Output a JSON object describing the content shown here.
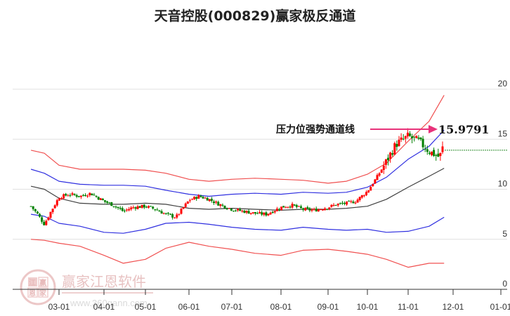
{
  "title": "天音控股(000829)赢家极反通道",
  "annotation": {
    "label": "压力位强势通道线",
    "value": "15.9791",
    "arrow_color": "#e8327a"
  },
  "watermark": {
    "brand": "赢家江恩软件",
    "url": "www.360gann.com",
    "seal": [
      "江",
      "赢",
      "恩",
      "家"
    ]
  },
  "colors": {
    "up": "#ff0000",
    "down": "#008000",
    "outer_band": "#f05050",
    "inner_band": "#3030e0",
    "mid_line": "#404040",
    "grid": "#e0e0e0",
    "axis": "#333333",
    "projection": "#2a8a2a"
  },
  "chart_data": {
    "type": "candlestick",
    "title": "天音控股(000829)赢家极反通道",
    "xlabel": "",
    "ylabel": "",
    "ylim": [
      0,
      20
    ],
    "y_ticks": [
      0,
      5,
      10,
      15,
      20
    ],
    "x_ticks": [
      "03-01",
      "04-01",
      "05-01",
      "06-01",
      "07-01",
      "08-01",
      "09-01",
      "10-01",
      "11-01",
      "12-01",
      "01-01"
    ],
    "grid": true,
    "legend": null,
    "annotations": [
      {
        "text": "压力位强势通道线",
        "value": 15.9791,
        "type": "arrow"
      }
    ],
    "projection_level": 13.9,
    "series": [
      {
        "name": "outer_upper_band",
        "x": [
          "02-10",
          "02-20",
          "03-01",
          "03-15",
          "04-01",
          "04-15",
          "05-01",
          "05-15",
          "06-01",
          "06-15",
          "07-01",
          "07-15",
          "08-01",
          "08-15",
          "09-01",
          "09-15",
          "10-01",
          "10-15",
          "11-01",
          "11-15",
          "11-25"
        ],
        "values": [
          13.9,
          13.6,
          12.4,
          12.0,
          12.0,
          12.0,
          11.9,
          11.6,
          11.0,
          10.8,
          11.0,
          11.1,
          11.0,
          10.9,
          10.6,
          10.8,
          11.5,
          12.6,
          14.8,
          16.8,
          19.4
        ]
      },
      {
        "name": "inner_upper_band",
        "x": [
          "02-10",
          "02-20",
          "03-01",
          "03-15",
          "04-01",
          "04-15",
          "05-01",
          "05-15",
          "06-01",
          "06-15",
          "07-01",
          "07-15",
          "08-01",
          "08-15",
          "09-01",
          "09-15",
          "10-01",
          "10-15",
          "11-01",
          "11-15",
          "11-25"
        ],
        "values": [
          12.0,
          11.6,
          10.8,
          10.5,
          10.4,
          10.4,
          10.3,
          9.9,
          9.5,
          9.3,
          9.5,
          9.6,
          9.5,
          9.7,
          9.6,
          9.7,
          10.2,
          11.2,
          13.0,
          14.3,
          15.9
        ]
      },
      {
        "name": "middle_line",
        "x": [
          "02-10",
          "02-20",
          "03-01",
          "03-15",
          "04-01",
          "04-15",
          "05-01",
          "05-15",
          "06-01",
          "06-15",
          "07-01",
          "07-15",
          "08-01",
          "08-15",
          "09-01",
          "09-15",
          "10-01",
          "10-15",
          "11-01",
          "11-15",
          "11-25"
        ],
        "values": [
          10.3,
          10.0,
          9.1,
          8.6,
          8.5,
          8.5,
          8.6,
          8.5,
          8.1,
          8.0,
          8.1,
          8.0,
          7.9,
          8.0,
          8.0,
          8.1,
          8.3,
          9.0,
          10.2,
          11.3,
          12.1
        ]
      },
      {
        "name": "inner_lower_band",
        "x": [
          "02-10",
          "02-20",
          "03-01",
          "03-15",
          "04-01",
          "04-15",
          "05-01",
          "05-15",
          "06-01",
          "06-15",
          "07-01",
          "07-15",
          "08-01",
          "08-15",
          "09-01",
          "09-15",
          "10-01",
          "10-15",
          "11-01",
          "11-15",
          "11-25"
        ],
        "values": [
          7.5,
          7.3,
          6.6,
          6.3,
          5.7,
          5.6,
          6.0,
          6.6,
          6.7,
          6.5,
          6.2,
          6.0,
          5.9,
          6.2,
          6.0,
          5.9,
          6.0,
          5.7,
          5.8,
          6.3,
          7.2
        ]
      },
      {
        "name": "outer_lower_band",
        "x": [
          "02-10",
          "02-20",
          "03-01",
          "03-15",
          "04-01",
          "04-15",
          "05-01",
          "05-15",
          "06-01",
          "06-15",
          "07-01",
          "07-15",
          "08-01",
          "08-15",
          "09-01",
          "09-15",
          "10-01",
          "10-15",
          "11-01",
          "11-15",
          "11-25"
        ],
        "values": [
          5.0,
          4.9,
          4.6,
          4.3,
          3.4,
          2.6,
          3.0,
          4.1,
          4.7,
          4.3,
          4.0,
          3.6,
          3.4,
          3.9,
          4.0,
          3.8,
          3.5,
          3.0,
          2.2,
          2.6,
          2.6
        ]
      },
      {
        "name": "price_close",
        "x": [
          "02-10",
          "02-15",
          "02-20",
          "02-25",
          "03-01",
          "03-08",
          "03-15",
          "03-22",
          "04-01",
          "04-08",
          "04-15",
          "04-22",
          "05-01",
          "05-08",
          "05-15",
          "05-22",
          "06-01",
          "06-08",
          "06-15",
          "06-22",
          "07-01",
          "07-08",
          "07-15",
          "07-22",
          "08-01",
          "08-08",
          "08-15",
          "08-22",
          "09-01",
          "09-08",
          "09-15",
          "09-22",
          "10-01",
          "10-08",
          "10-15",
          "10-22",
          "11-01",
          "11-08",
          "11-15",
          "11-22",
          "11-25"
        ],
        "values": [
          8.3,
          7.5,
          6.5,
          7.8,
          9.2,
          9.5,
          9.3,
          9.6,
          8.8,
          8.4,
          7.8,
          8.2,
          8.3,
          8.0,
          7.5,
          7.2,
          8.9,
          9.3,
          9.0,
          8.5,
          8.0,
          7.8,
          7.6,
          7.5,
          8.2,
          8.4,
          8.0,
          7.9,
          8.2,
          8.5,
          8.6,
          8.8,
          9.8,
          11.2,
          12.8,
          14.5,
          15.3,
          14.8,
          13.8,
          13.2,
          14.6
        ]
      }
    ]
  }
}
